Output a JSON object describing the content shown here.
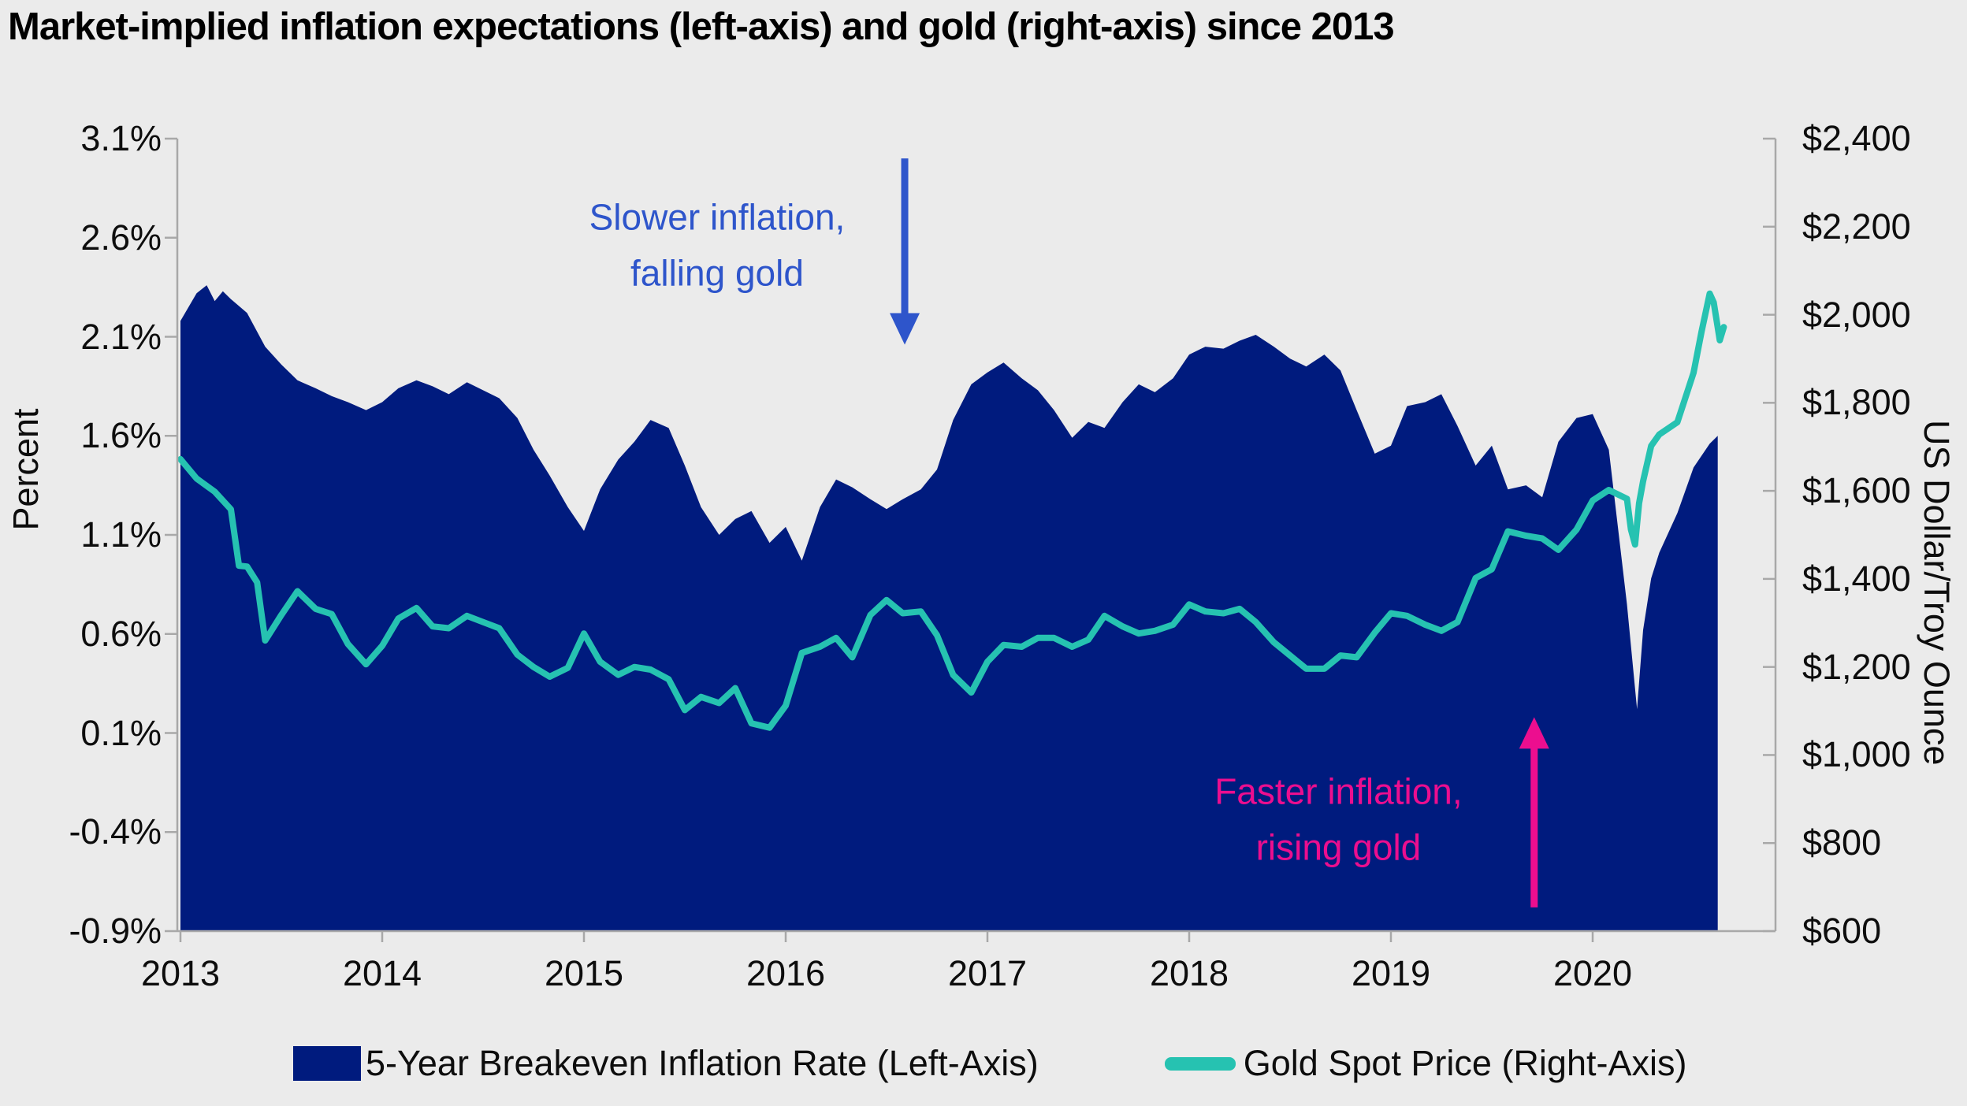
{
  "title": "Market-implied inflation expectations (left-axis) and gold (right-axis) since 2013",
  "colors": {
    "background": "#ebebeb",
    "breakeven_area": "#001b7e",
    "gold_line": "#26c2b1",
    "axis_line": "#a8a8a8",
    "annotation_blue": "#2e55cb",
    "annotation_magenta": "#ec0e8f",
    "text": "#0d0d0d"
  },
  "chart_data": {
    "type": "area",
    "title": "Market-implied inflation expectations (left-axis) and gold (right-axis) since 2013",
    "grid": false,
    "legend_position": "bottom",
    "left_axis": {
      "label": "Percent",
      "ticks": [
        "3.1%",
        "2.6%",
        "2.1%",
        "1.6%",
        "1.1%",
        "0.6%",
        "0.1%",
        "-0.4%",
        "-0.9%"
      ],
      "tick_values": [
        3.1,
        2.6,
        2.1,
        1.6,
        1.1,
        0.6,
        0.1,
        -0.4,
        -0.9
      ],
      "min": -0.9,
      "max": 3.1
    },
    "right_axis": {
      "label": "US Dollar/Troy Ounce",
      "ticks": [
        "$2,400",
        "$2,200",
        "$2,000",
        "$1,800",
        "$1,600",
        "$1,400",
        "$1,200",
        "$1,000",
        "$800",
        "$600"
      ],
      "tick_values": [
        2400,
        2200,
        2000,
        1800,
        1600,
        1400,
        1200,
        1000,
        800,
        600
      ],
      "min": 600,
      "max": 2400
    },
    "x_axis": {
      "ticks": [
        "2013",
        "2014",
        "2015",
        "2016",
        "2017",
        "2018",
        "2019",
        "2020"
      ],
      "tick_values": [
        2013,
        2014,
        2015,
        2016,
        2017,
        2018,
        2019,
        2020
      ],
      "min": 2013,
      "max": 2020.9
    },
    "series": [
      {
        "name": "5-Year Breakeven Inflation Rate (Left-Axis)",
        "type": "area",
        "axis": "left",
        "color": "#001b7e",
        "points": [
          [
            2013.0,
            2.18
          ],
          [
            2013.08,
            2.32
          ],
          [
            2013.13,
            2.36
          ],
          [
            2013.17,
            2.28
          ],
          [
            2013.21,
            2.33
          ],
          [
            2013.25,
            2.29
          ],
          [
            2013.33,
            2.22
          ],
          [
            2013.42,
            2.05
          ],
          [
            2013.5,
            1.96
          ],
          [
            2013.58,
            1.88
          ],
          [
            2013.67,
            1.84
          ],
          [
            2013.75,
            1.8
          ],
          [
            2013.83,
            1.77
          ],
          [
            2013.92,
            1.73
          ],
          [
            2014.0,
            1.77
          ],
          [
            2014.08,
            1.84
          ],
          [
            2014.17,
            1.88
          ],
          [
            2014.25,
            1.85
          ],
          [
            2014.33,
            1.81
          ],
          [
            2014.42,
            1.87
          ],
          [
            2014.5,
            1.83
          ],
          [
            2014.58,
            1.79
          ],
          [
            2014.67,
            1.69
          ],
          [
            2014.75,
            1.53
          ],
          [
            2014.83,
            1.4
          ],
          [
            2014.92,
            1.24
          ],
          [
            2015.0,
            1.12
          ],
          [
            2015.08,
            1.33
          ],
          [
            2015.17,
            1.48
          ],
          [
            2015.25,
            1.57
          ],
          [
            2015.33,
            1.68
          ],
          [
            2015.42,
            1.64
          ],
          [
            2015.5,
            1.45
          ],
          [
            2015.58,
            1.24
          ],
          [
            2015.67,
            1.1
          ],
          [
            2015.75,
            1.18
          ],
          [
            2015.83,
            1.22
          ],
          [
            2015.92,
            1.06
          ],
          [
            2016.0,
            1.14
          ],
          [
            2016.08,
            0.97
          ],
          [
            2016.17,
            1.24
          ],
          [
            2016.25,
            1.38
          ],
          [
            2016.33,
            1.34
          ],
          [
            2016.42,
            1.28
          ],
          [
            2016.5,
            1.23
          ],
          [
            2016.58,
            1.28
          ],
          [
            2016.67,
            1.33
          ],
          [
            2016.75,
            1.43
          ],
          [
            2016.83,
            1.68
          ],
          [
            2016.92,
            1.86
          ],
          [
            2017.0,
            1.92
          ],
          [
            2017.08,
            1.97
          ],
          [
            2017.17,
            1.89
          ],
          [
            2017.25,
            1.83
          ],
          [
            2017.33,
            1.73
          ],
          [
            2017.42,
            1.59
          ],
          [
            2017.5,
            1.67
          ],
          [
            2017.58,
            1.64
          ],
          [
            2017.67,
            1.77
          ],
          [
            2017.75,
            1.86
          ],
          [
            2017.83,
            1.82
          ],
          [
            2017.92,
            1.89
          ],
          [
            2018.0,
            2.01
          ],
          [
            2018.08,
            2.05
          ],
          [
            2018.17,
            2.04
          ],
          [
            2018.25,
            2.08
          ],
          [
            2018.33,
            2.11
          ],
          [
            2018.42,
            2.05
          ],
          [
            2018.5,
            1.99
          ],
          [
            2018.58,
            1.95
          ],
          [
            2018.67,
            2.01
          ],
          [
            2018.75,
            1.93
          ],
          [
            2018.83,
            1.73
          ],
          [
            2018.92,
            1.51
          ],
          [
            2019.0,
            1.55
          ],
          [
            2019.08,
            1.75
          ],
          [
            2019.17,
            1.77
          ],
          [
            2019.25,
            1.81
          ],
          [
            2019.33,
            1.65
          ],
          [
            2019.42,
            1.45
          ],
          [
            2019.5,
            1.55
          ],
          [
            2019.58,
            1.33
          ],
          [
            2019.67,
            1.35
          ],
          [
            2019.75,
            1.29
          ],
          [
            2019.83,
            1.57
          ],
          [
            2019.92,
            1.69
          ],
          [
            2020.0,
            1.71
          ],
          [
            2020.08,
            1.53
          ],
          [
            2020.17,
            0.75
          ],
          [
            2020.22,
            0.22
          ],
          [
            2020.25,
            0.62
          ],
          [
            2020.29,
            0.88
          ],
          [
            2020.33,
            1.01
          ],
          [
            2020.42,
            1.21
          ],
          [
            2020.5,
            1.44
          ],
          [
            2020.58,
            1.56
          ],
          [
            2020.62,
            1.6
          ]
        ]
      },
      {
        "name": "Gold Spot Price (Right-Axis)",
        "type": "line",
        "axis": "right",
        "color": "#26c2b1",
        "points": [
          [
            2013.0,
            1672
          ],
          [
            2013.08,
            1628
          ],
          [
            2013.17,
            1598
          ],
          [
            2013.25,
            1558
          ],
          [
            2013.29,
            1430
          ],
          [
            2013.33,
            1428
          ],
          [
            2013.38,
            1392
          ],
          [
            2013.42,
            1260
          ],
          [
            2013.5,
            1318
          ],
          [
            2013.58,
            1372
          ],
          [
            2013.67,
            1332
          ],
          [
            2013.75,
            1320
          ],
          [
            2013.83,
            1252
          ],
          [
            2013.92,
            1206
          ],
          [
            2014.0,
            1248
          ],
          [
            2014.08,
            1310
          ],
          [
            2014.17,
            1334
          ],
          [
            2014.25,
            1292
          ],
          [
            2014.33,
            1288
          ],
          [
            2014.42,
            1316
          ],
          [
            2014.5,
            1302
          ],
          [
            2014.58,
            1288
          ],
          [
            2014.67,
            1228
          ],
          [
            2014.75,
            1200
          ],
          [
            2014.83,
            1178
          ],
          [
            2014.92,
            1198
          ],
          [
            2015.0,
            1276
          ],
          [
            2015.08,
            1212
          ],
          [
            2015.17,
            1182
          ],
          [
            2015.25,
            1200
          ],
          [
            2015.33,
            1194
          ],
          [
            2015.42,
            1172
          ],
          [
            2015.5,
            1102
          ],
          [
            2015.58,
            1132
          ],
          [
            2015.67,
            1118
          ],
          [
            2015.75,
            1152
          ],
          [
            2015.83,
            1072
          ],
          [
            2015.92,
            1062
          ],
          [
            2016.0,
            1112
          ],
          [
            2016.08,
            1232
          ],
          [
            2016.17,
            1246
          ],
          [
            2016.25,
            1266
          ],
          [
            2016.33,
            1222
          ],
          [
            2016.42,
            1318
          ],
          [
            2016.5,
            1352
          ],
          [
            2016.58,
            1322
          ],
          [
            2016.67,
            1326
          ],
          [
            2016.75,
            1272
          ],
          [
            2016.83,
            1182
          ],
          [
            2016.92,
            1142
          ],
          [
            2017.0,
            1212
          ],
          [
            2017.08,
            1250
          ],
          [
            2017.17,
            1246
          ],
          [
            2017.25,
            1266
          ],
          [
            2017.33,
            1266
          ],
          [
            2017.42,
            1246
          ],
          [
            2017.5,
            1262
          ],
          [
            2017.58,
            1316
          ],
          [
            2017.67,
            1292
          ],
          [
            2017.75,
            1276
          ],
          [
            2017.83,
            1282
          ],
          [
            2017.92,
            1296
          ],
          [
            2018.0,
            1342
          ],
          [
            2018.08,
            1326
          ],
          [
            2018.17,
            1322
          ],
          [
            2018.25,
            1332
          ],
          [
            2018.33,
            1302
          ],
          [
            2018.42,
            1256
          ],
          [
            2018.5,
            1226
          ],
          [
            2018.58,
            1196
          ],
          [
            2018.67,
            1196
          ],
          [
            2018.75,
            1226
          ],
          [
            2018.83,
            1222
          ],
          [
            2018.92,
            1278
          ],
          [
            2019.0,
            1322
          ],
          [
            2019.08,
            1316
          ],
          [
            2019.17,
            1296
          ],
          [
            2019.25,
            1282
          ],
          [
            2019.33,
            1302
          ],
          [
            2019.42,
            1402
          ],
          [
            2019.5,
            1422
          ],
          [
            2019.58,
            1508
          ],
          [
            2019.67,
            1498
          ],
          [
            2019.75,
            1492
          ],
          [
            2019.83,
            1466
          ],
          [
            2019.92,
            1512
          ],
          [
            2020.0,
            1578
          ],
          [
            2020.08,
            1602
          ],
          [
            2020.17,
            1582
          ],
          [
            2020.19,
            1512
          ],
          [
            2020.21,
            1478
          ],
          [
            2020.23,
            1572
          ],
          [
            2020.25,
            1622
          ],
          [
            2020.29,
            1702
          ],
          [
            2020.33,
            1728
          ],
          [
            2020.42,
            1756
          ],
          [
            2020.5,
            1868
          ],
          [
            2020.54,
            1962
          ],
          [
            2020.58,
            2048
          ],
          [
            2020.6,
            2028
          ],
          [
            2020.63,
            1942
          ],
          [
            2020.65,
            1972
          ]
        ]
      }
    ],
    "annotations": [
      {
        "id": "slower-inflation",
        "lines": [
          "Slower inflation,",
          "falling gold"
        ],
        "color": "#2e55cb",
        "text_x_year": 2015.66,
        "text_y_pct": 2.56,
        "arrow": {
          "x_year": 2016.59,
          "from_pct": 3.0,
          "to_pct": 2.06,
          "direction": "down"
        }
      },
      {
        "id": "faster-inflation",
        "lines": [
          "Faster inflation,",
          "rising gold"
        ],
        "color": "#ec0e8f",
        "text_x_year": 2018.74,
        "text_y_pct": -0.34,
        "arrow": {
          "x_year": 2019.71,
          "from_pct": -0.78,
          "to_pct": 0.18,
          "direction": "up"
        }
      }
    ]
  },
  "legend": {
    "items": [
      {
        "label": "5-Year Breakeven Inflation Rate (Left-Axis)",
        "swatch": "area",
        "color": "#001b7e"
      },
      {
        "label": "Gold Spot Price (Right-Axis)",
        "swatch": "line",
        "color": "#26c2b1"
      }
    ]
  }
}
